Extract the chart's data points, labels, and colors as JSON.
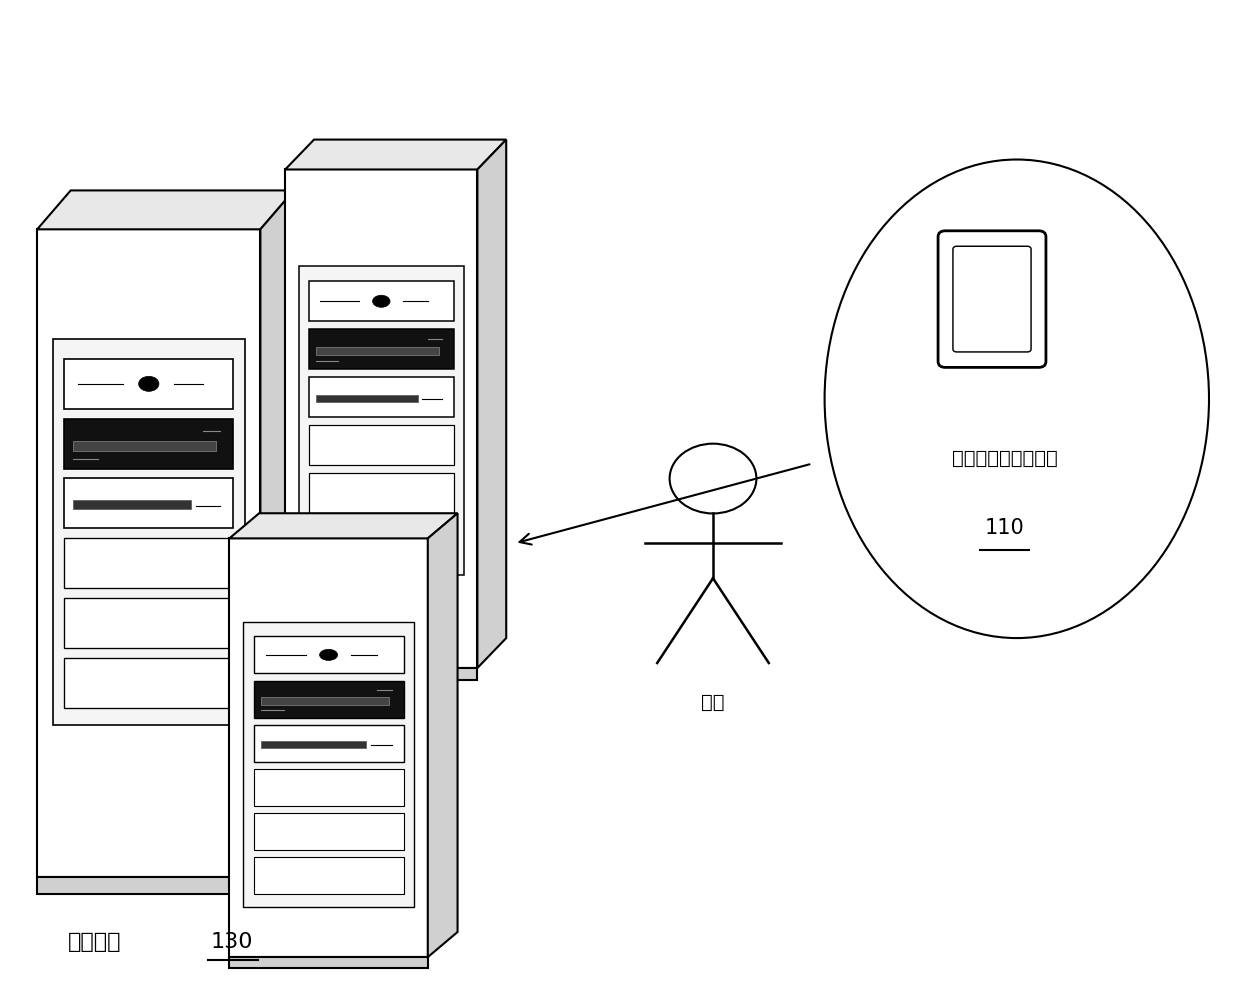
{
  "bg_color": "#ffffff",
  "label_platform": "计算平台",
  "label_platform_num": "130",
  "label_datasource": "数据源（用户终端）",
  "label_datasource_num": "110",
  "label_user": "用户"
}
